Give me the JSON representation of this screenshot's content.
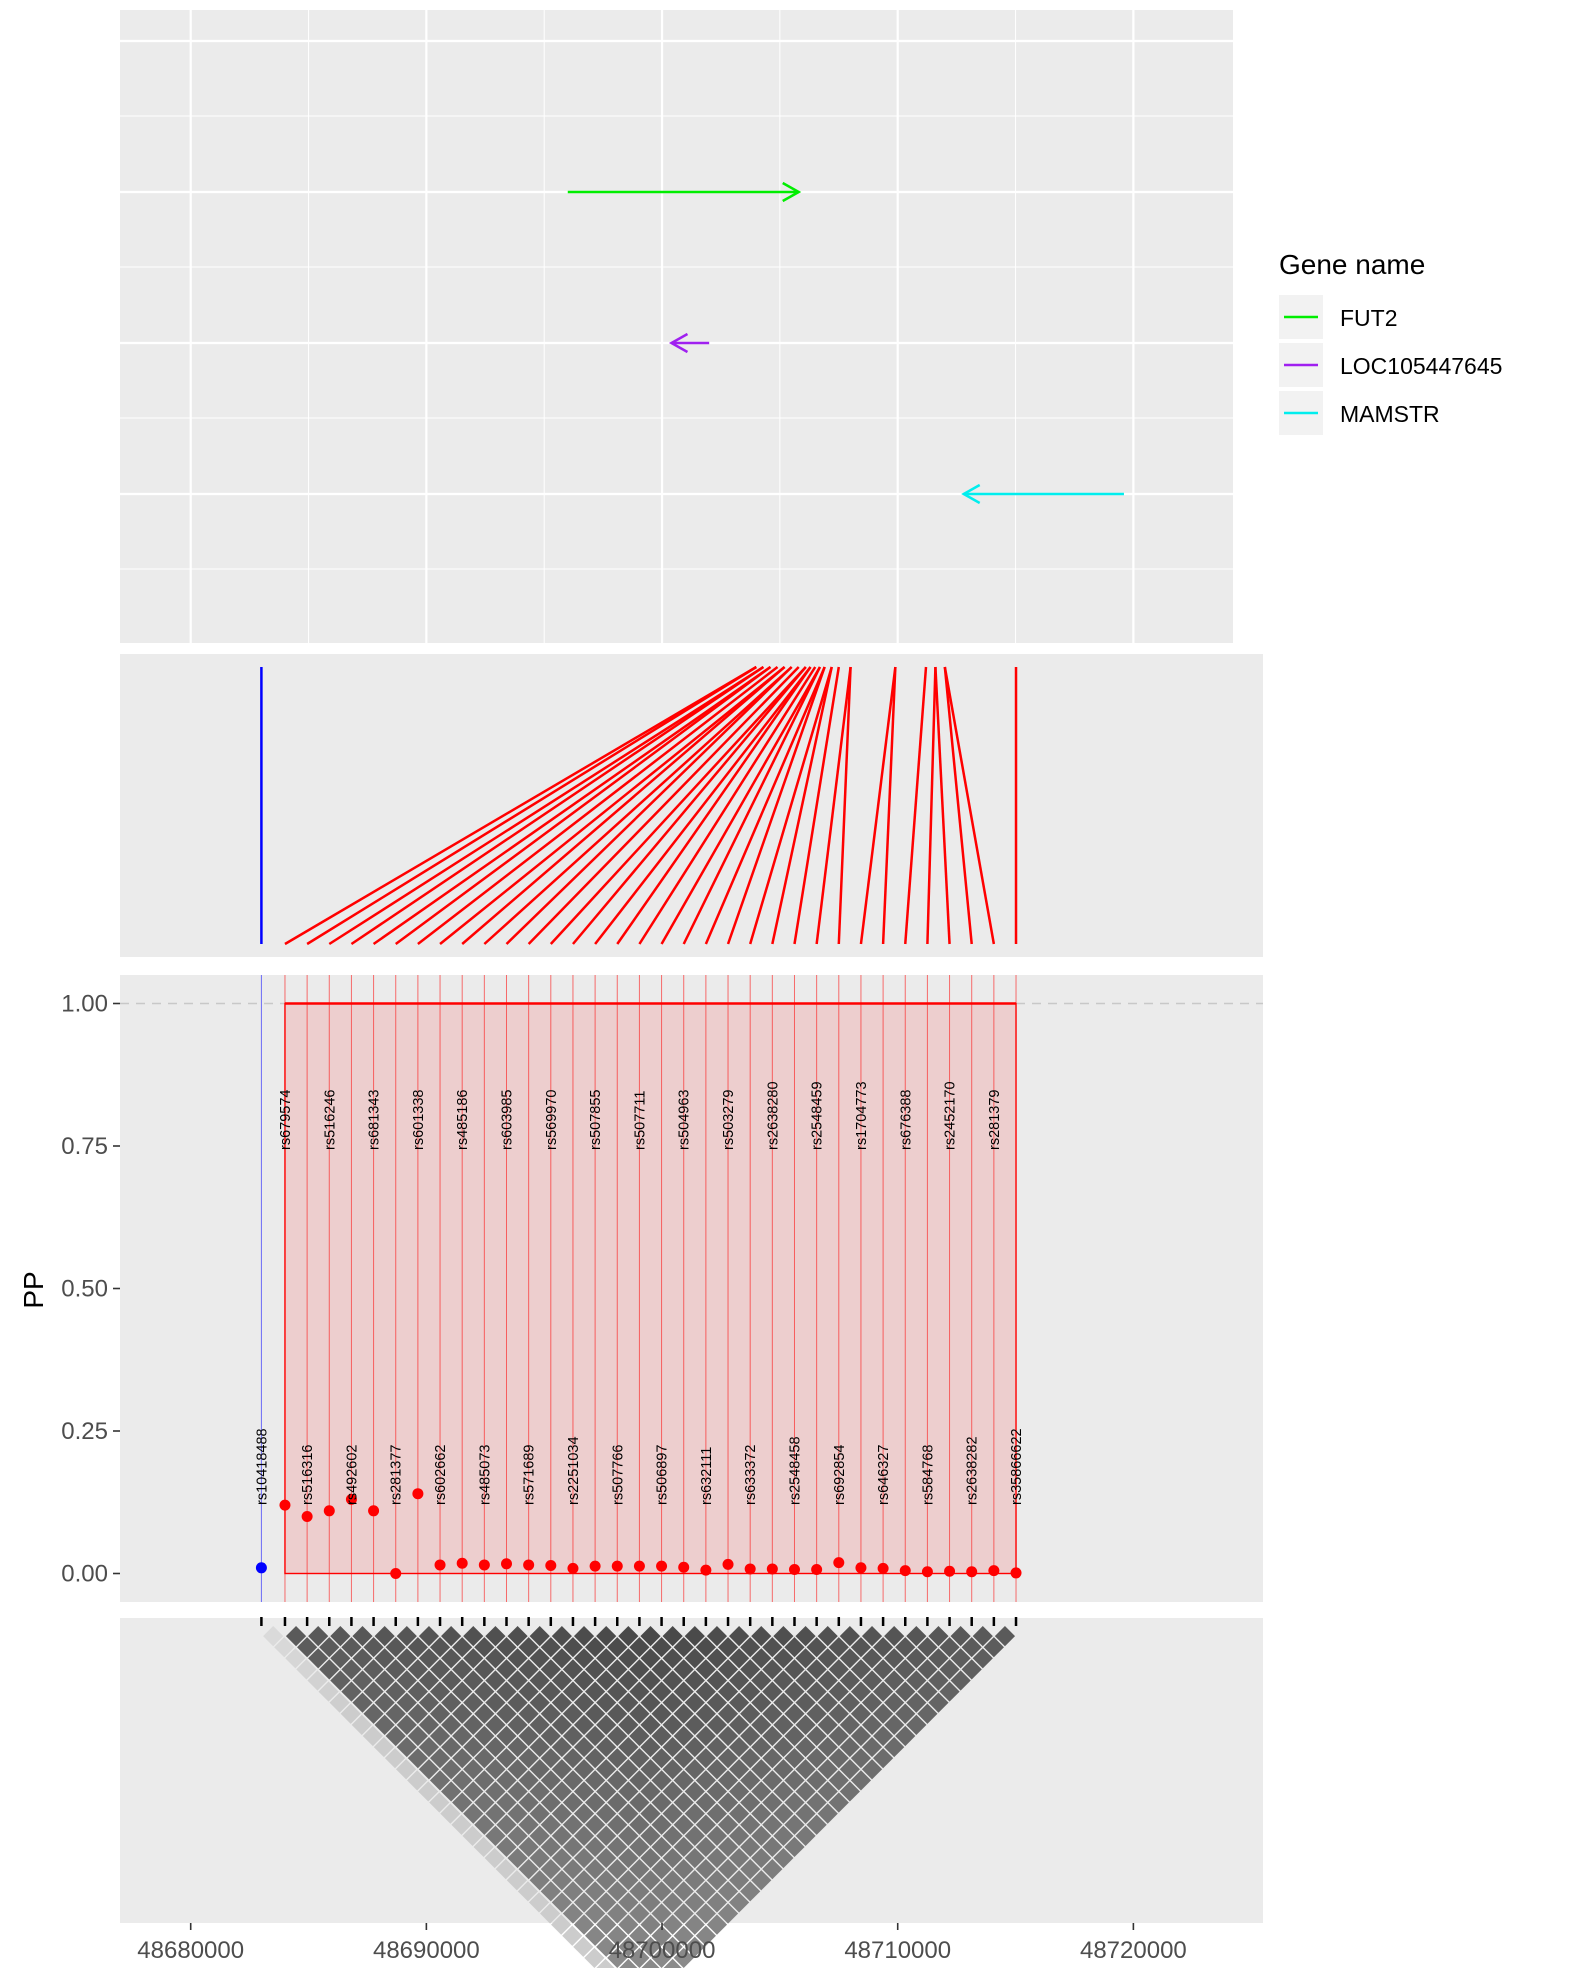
{
  "chart_data": {
    "type": "line",
    "panels": [
      "gene-track",
      "snp-connector",
      "pp-lollipop",
      "ld-heatmap"
    ],
    "x_axis": {
      "label": "",
      "ticks": [
        "48680000",
        "48690000",
        "48700000",
        "48710000",
        "48720000"
      ],
      "tick_values": [
        48680000,
        48690000,
        48700000,
        48710000,
        48720000
      ],
      "range": [
        48677000,
        48725500
      ]
    },
    "y_axis": {
      "label": "PP",
      "ticks": [
        "0.00",
        "0.25",
        "0.50",
        "0.75",
        "1.00"
      ],
      "tick_values": [
        0,
        0.25,
        0.5,
        0.75,
        1
      ],
      "range": [
        -0.05,
        1.05
      ],
      "reference_line": 1.0
    },
    "genes": {
      "legend_title": "Gene name",
      "items": [
        {
          "name": "FUT2",
          "start": 48696000,
          "end": 48705800,
          "strand": "+",
          "color": "#00ee00"
        },
        {
          "name": "LOC105447645",
          "start": 48702000,
          "end": 48700400,
          "strand": "-",
          "color": "#a020f0"
        },
        {
          "name": "MAMSTR",
          "start": 48719600,
          "end": 48712800,
          "strand": "-",
          "color": "#00eeee"
        }
      ]
    },
    "snps": [
      {
        "id": "rs10418488",
        "pos": 48683000,
        "pp": 0.01,
        "group": "blue"
      },
      {
        "id": "rs679574",
        "pos": 48684000,
        "pp": 0.12,
        "group": "red"
      },
      {
        "id": "rs516316",
        "pos": 48684940,
        "pp": 0.1,
        "group": "red"
      },
      {
        "id": "rs516246",
        "pos": 48685880,
        "pp": 0.11,
        "group": "red"
      },
      {
        "id": "rs492602",
        "pos": 48686820,
        "pp": 0.13,
        "group": "red"
      },
      {
        "id": "rs681343",
        "pos": 48687760,
        "pp": 0.11,
        "group": "red"
      },
      {
        "id": "rs281377",
        "pos": 48688700,
        "pp": 0.0,
        "group": "red"
      },
      {
        "id": "rs601338",
        "pos": 48689640,
        "pp": 0.14,
        "group": "red"
      },
      {
        "id": "rs602662",
        "pos": 48690580,
        "pp": 0.015,
        "group": "red"
      },
      {
        "id": "rs485186",
        "pos": 48691520,
        "pp": 0.018,
        "group": "red"
      },
      {
        "id": "rs485073",
        "pos": 48692460,
        "pp": 0.015,
        "group": "red"
      },
      {
        "id": "rs603985",
        "pos": 48693400,
        "pp": 0.017,
        "group": "red"
      },
      {
        "id": "rs571689",
        "pos": 48694340,
        "pp": 0.015,
        "group": "red"
      },
      {
        "id": "rs569970",
        "pos": 48695280,
        "pp": 0.014,
        "group": "red"
      },
      {
        "id": "rs2251034",
        "pos": 48696220,
        "pp": 0.009,
        "group": "red"
      },
      {
        "id": "rs507855",
        "pos": 48697160,
        "pp": 0.013,
        "group": "red"
      },
      {
        "id": "rs507766",
        "pos": 48698100,
        "pp": 0.013,
        "group": "red"
      },
      {
        "id": "rs507711",
        "pos": 48699040,
        "pp": 0.013,
        "group": "red"
      },
      {
        "id": "rs506897",
        "pos": 48699980,
        "pp": 0.013,
        "group": "red"
      },
      {
        "id": "rs504963",
        "pos": 48700920,
        "pp": 0.011,
        "group": "red"
      },
      {
        "id": "rs632111",
        "pos": 48701860,
        "pp": 0.006,
        "group": "red"
      },
      {
        "id": "rs503279",
        "pos": 48702800,
        "pp": 0.016,
        "group": "red"
      },
      {
        "id": "rs633372",
        "pos": 48703740,
        "pp": 0.008,
        "group": "red"
      },
      {
        "id": "rs2638280",
        "pos": 48704680,
        "pp": 0.008,
        "group": "red"
      },
      {
        "id": "rs2548458",
        "pos": 48705620,
        "pp": 0.007,
        "group": "red"
      },
      {
        "id": "rs2548459",
        "pos": 48706560,
        "pp": 0.007,
        "group": "red"
      },
      {
        "id": "rs692854",
        "pos": 48707500,
        "pp": 0.019,
        "group": "red"
      },
      {
        "id": "rs1704773",
        "pos": 48708440,
        "pp": 0.01,
        "group": "red"
      },
      {
        "id": "rs646327",
        "pos": 48709380,
        "pp": 0.009,
        "group": "red"
      },
      {
        "id": "rs676388",
        "pos": 48710320,
        "pp": 0.005,
        "group": "red"
      },
      {
        "id": "rs584768",
        "pos": 48711260,
        "pp": 0.003,
        "group": "red"
      },
      {
        "id": "rs2452170",
        "pos": 48712200,
        "pp": 0.004,
        "group": "red"
      },
      {
        "id": "rs2638282",
        "pos": 48713140,
        "pp": 0.003,
        "group": "red"
      },
      {
        "id": "rs281379",
        "pos": 48714080,
        "pp": 0.005,
        "group": "red"
      },
      {
        "id": "rs35866622",
        "pos": 48715020,
        "pp": 0.001,
        "group": "red"
      }
    ],
    "connector_top_positions": [
      48683000,
      48704000,
      48704300,
      48704600,
      48704900,
      48705200,
      48705500,
      48705800,
      48706100,
      48706300,
      48706500,
      48706700,
      48706900,
      48707200,
      48707500,
      48708000,
      48709900,
      48711200,
      48711600,
      48712000,
      48715020
    ],
    "credible_set": {
      "start": 48684000,
      "end": 48715020,
      "pp_sum": 1.0,
      "color": "#ff0000"
    },
    "colors": {
      "red": "#ff0000",
      "blue": "#0000ff",
      "panel_bg": "#ebebeb",
      "grid": "#ffffff"
    }
  }
}
